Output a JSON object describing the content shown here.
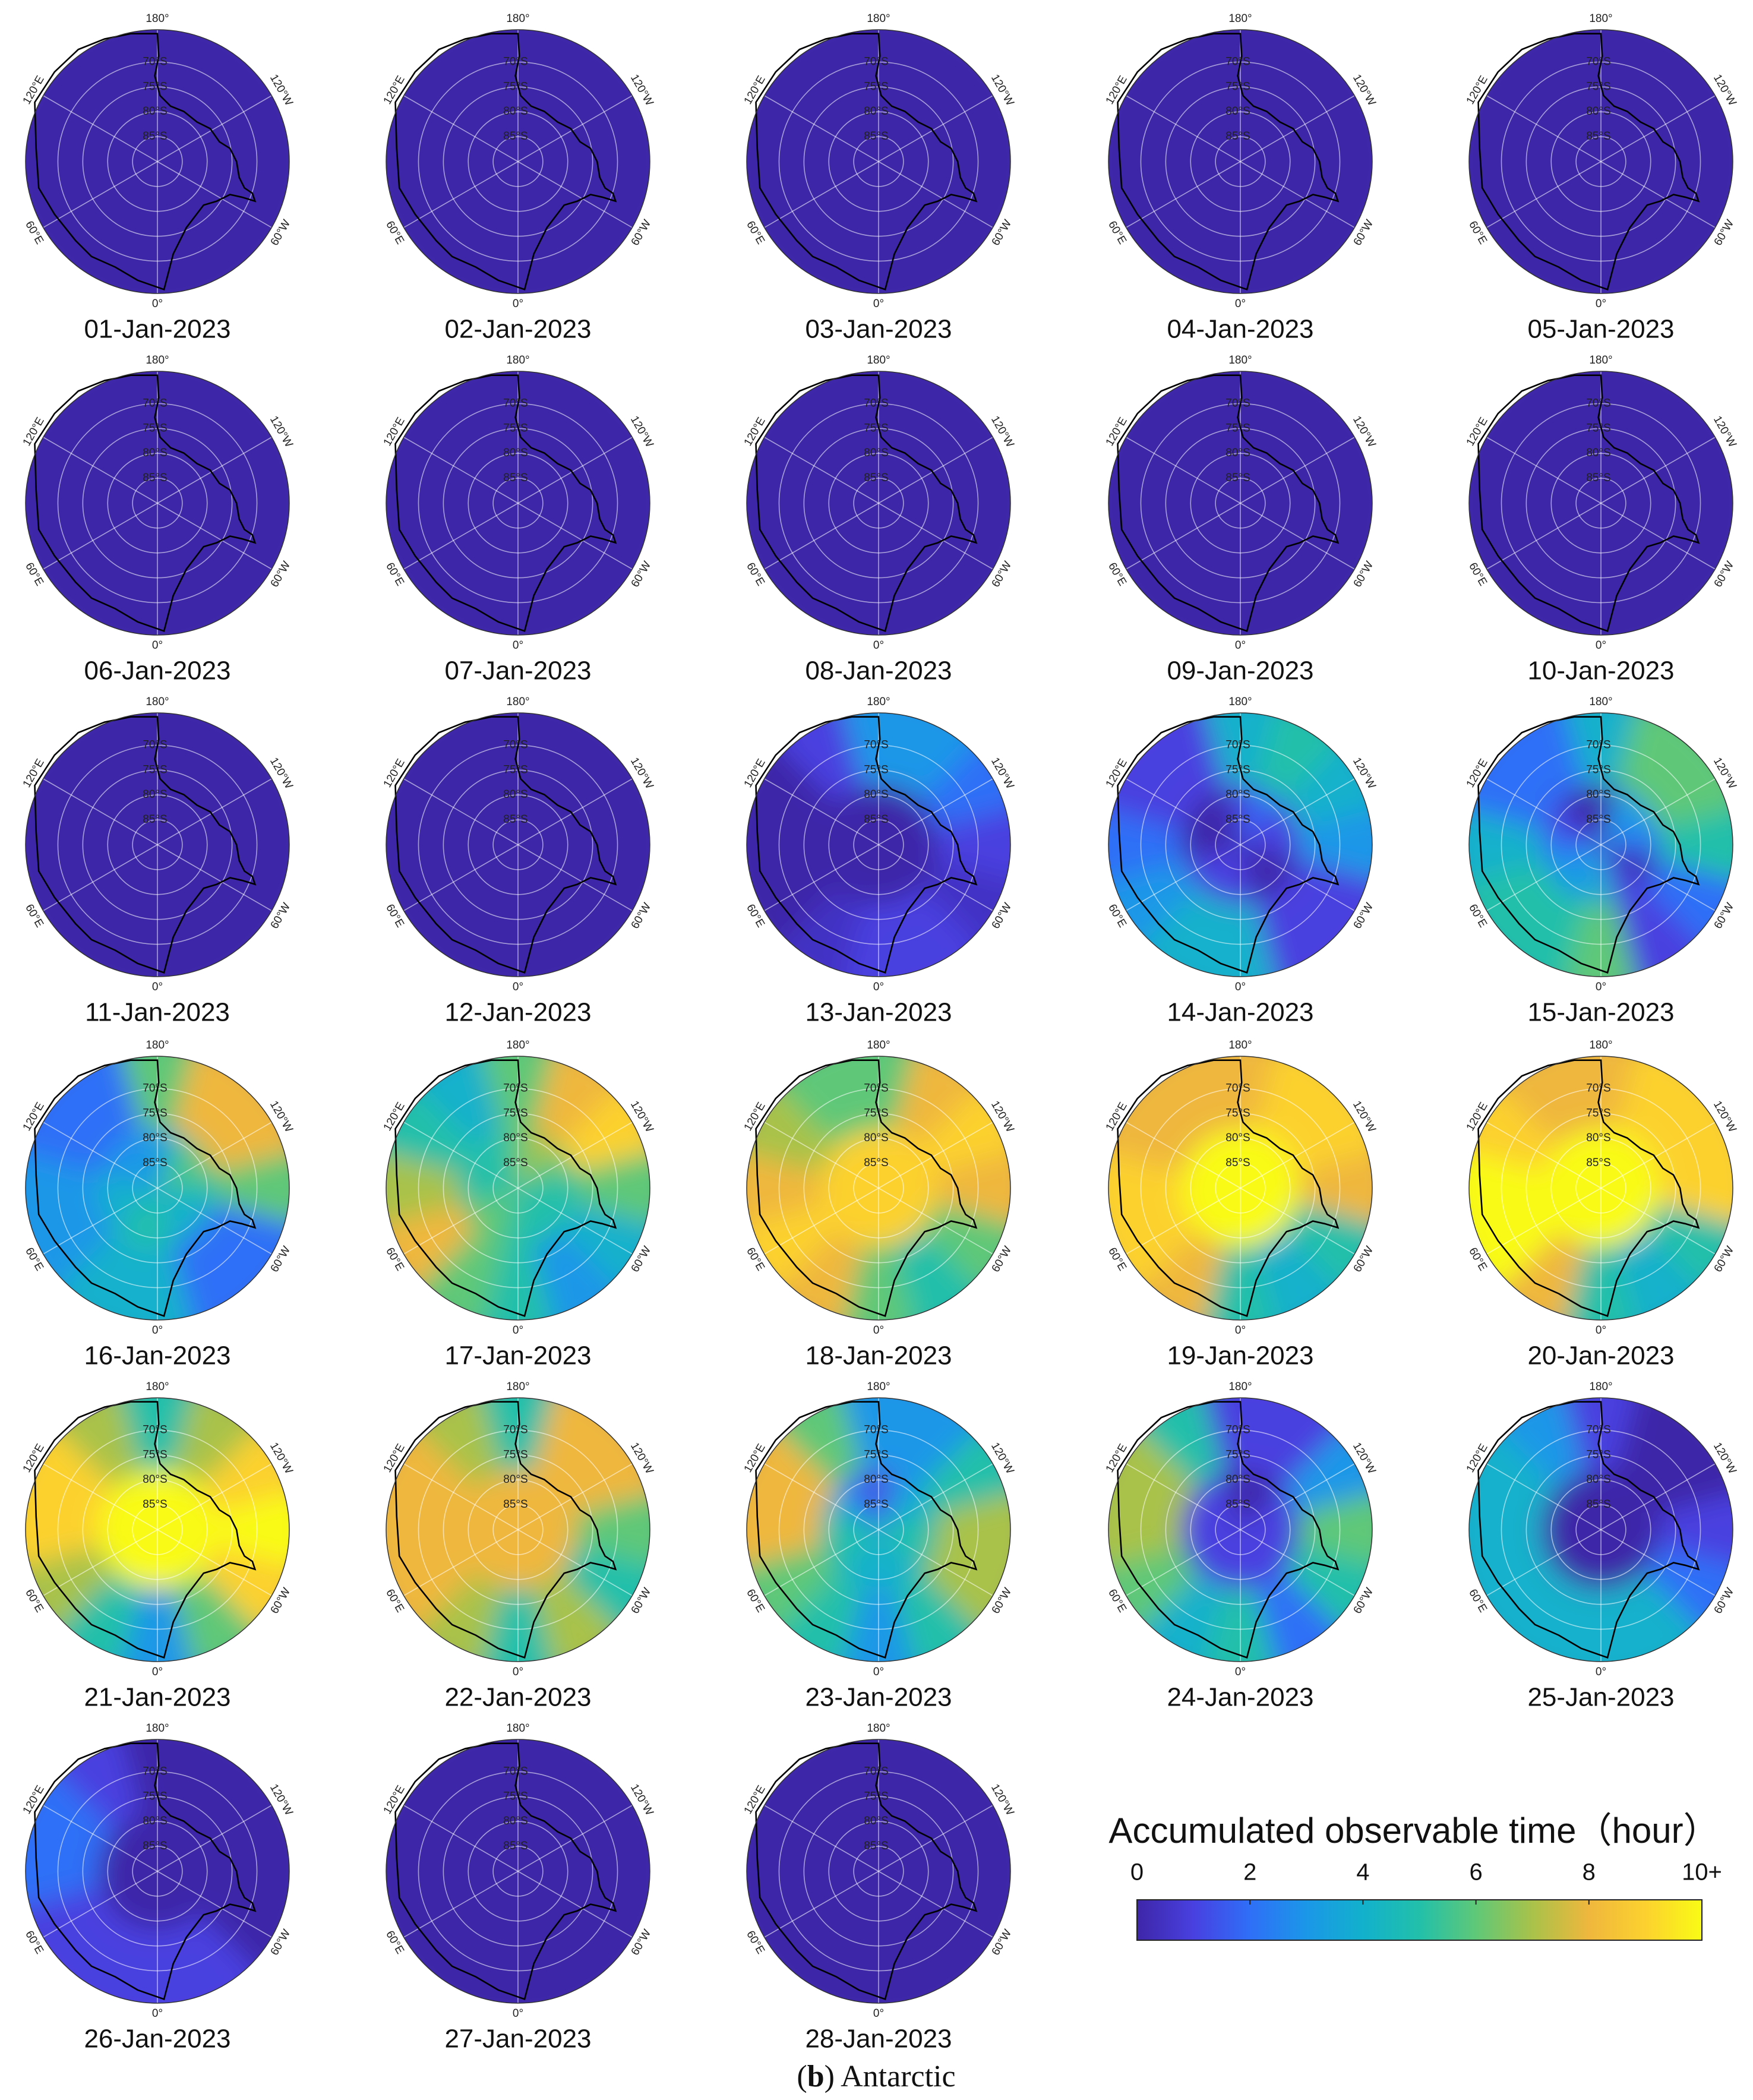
{
  "chart_data": {
    "type": "polar_heatmap_grid",
    "theta_ticks": [
      {
        "value": 0,
        "label": "0°"
      },
      {
        "value": 60,
        "label": "60°E"
      },
      {
        "value": 120,
        "label": "120°E"
      },
      {
        "value": 180,
        "label": "180°"
      },
      {
        "value": 240,
        "label": "120°W"
      },
      {
        "value": 300,
        "label": "60°W"
      }
    ],
    "r_ticks": [
      {
        "value": -85,
        "label": "85°S"
      },
      {
        "value": -80,
        "label": "80°S"
      },
      {
        "value": -75,
        "label": "75°S"
      },
      {
        "value": -70,
        "label": "70°S"
      }
    ],
    "rlim": [
      -90,
      -63.5
    ],
    "sector_centers": [
      0,
      30,
      60,
      90,
      120,
      150,
      180,
      210,
      240,
      270,
      300,
      330
    ],
    "ring_edges": [
      -90,
      -78,
      -63.5
    ],
    "panels": [
      {
        "title": "01-Jan-2023",
        "values": [
          [
            0,
            0,
            0,
            0,
            0,
            0,
            0,
            0,
            0,
            0,
            0,
            0
          ],
          [
            0,
            0,
            0,
            0,
            0,
            0,
            0,
            0,
            0,
            0,
            0,
            0
          ]
        ]
      },
      {
        "title": "02-Jan-2023",
        "values": [
          [
            0,
            0,
            0,
            0,
            0,
            0,
            0,
            0,
            0,
            0,
            0,
            0
          ],
          [
            0,
            0,
            0,
            0,
            0,
            0,
            0,
            0,
            0,
            0,
            0,
            0
          ]
        ]
      },
      {
        "title": "03-Jan-2023",
        "values": [
          [
            0,
            0,
            0,
            0,
            0,
            0,
            0,
            0,
            0,
            0,
            0,
            0
          ],
          [
            0,
            0,
            0,
            0,
            0,
            0,
            0,
            0,
            0,
            0,
            0,
            0
          ]
        ]
      },
      {
        "title": "04-Jan-2023",
        "values": [
          [
            0,
            0,
            0,
            0,
            0,
            0,
            0,
            0,
            0,
            0,
            0,
            0
          ],
          [
            0,
            0,
            0,
            0,
            0,
            0,
            0,
            0,
            0,
            0,
            0,
            0
          ]
        ]
      },
      {
        "title": "05-Jan-2023",
        "values": [
          [
            0,
            0,
            0,
            0,
            0,
            0,
            0,
            0,
            0,
            0,
            0,
            0
          ],
          [
            0,
            0,
            0,
            0,
            0,
            0,
            0,
            0,
            0,
            0,
            0,
            0
          ]
        ]
      },
      {
        "title": "06-Jan-2023",
        "values": [
          [
            0,
            0,
            0,
            0,
            0,
            0,
            0,
            0,
            0,
            0,
            0,
            0
          ],
          [
            0,
            0,
            0,
            0,
            0,
            0,
            0,
            0,
            0,
            0,
            0,
            0
          ]
        ]
      },
      {
        "title": "07-Jan-2023",
        "values": [
          [
            0,
            0,
            0,
            0,
            0,
            0,
            0,
            0,
            0,
            0,
            0,
            0
          ],
          [
            0,
            0,
            0,
            0,
            0,
            0,
            0,
            0,
            0,
            0,
            0,
            0
          ]
        ]
      },
      {
        "title": "08-Jan-2023",
        "values": [
          [
            0,
            0,
            0,
            0,
            0,
            0,
            0,
            0,
            0,
            0,
            0,
            0
          ],
          [
            0,
            0,
            0,
            0,
            0,
            0,
            0,
            0,
            0,
            0,
            0,
            0
          ]
        ]
      },
      {
        "title": "09-Jan-2023",
        "values": [
          [
            0,
            0,
            0,
            0,
            0,
            0,
            0,
            0,
            0,
            0,
            0,
            0
          ],
          [
            0,
            0,
            0,
            0,
            0,
            0,
            0,
            0,
            0,
            0,
            0,
            0
          ]
        ]
      },
      {
        "title": "10-Jan-2023",
        "values": [
          [
            0,
            0,
            0,
            0,
            0,
            0,
            0,
            0,
            0,
            0,
            0,
            0
          ],
          [
            0,
            0,
            0,
            0,
            0,
            0,
            0,
            0,
            0,
            0,
            0,
            0
          ]
        ]
      },
      {
        "title": "11-Jan-2023",
        "values": [
          [
            0,
            0,
            0,
            0,
            0,
            0,
            0,
            0,
            0,
            0,
            0,
            0
          ],
          [
            0,
            0,
            0,
            0,
            0,
            0,
            0,
            0,
            0,
            0,
            0,
            0
          ]
        ]
      },
      {
        "title": "12-Jan-2023",
        "values": [
          [
            0,
            0,
            0,
            0,
            0,
            0,
            0,
            0,
            0,
            0,
            0,
            0
          ],
          [
            0,
            0,
            0,
            0,
            0,
            0,
            0,
            0,
            0,
            0,
            0,
            0
          ]
        ]
      },
      {
        "title": "13-Jan-2023",
        "values": [
          [
            0,
            0,
            0,
            0,
            0,
            0,
            0,
            0,
            0,
            0,
            0,
            0
          ],
          [
            1,
            0.5,
            0,
            0,
            0,
            1,
            3,
            3,
            2,
            1,
            0.5,
            1
          ]
        ]
      },
      {
        "title": "14-Jan-2023",
        "values": [
          [
            1,
            1,
            1,
            0,
            0,
            0,
            1,
            2,
            1,
            1,
            0,
            0
          ],
          [
            4,
            4,
            3,
            2,
            1,
            1,
            4,
            5,
            4,
            3,
            1,
            1
          ]
        ]
      },
      {
        "title": "15-Jan-2023",
        "values": [
          [
            4,
            3,
            3,
            2,
            1,
            0,
            0,
            3,
            3,
            2,
            0,
            1
          ],
          [
            6,
            5,
            5,
            4,
            2,
            2,
            4,
            6,
            6,
            5,
            2,
            1
          ]
        ]
      },
      {
        "title": "16-Jan-2023",
        "values": [
          [
            5,
            5,
            4,
            4,
            3,
            3,
            3,
            5,
            6,
            5,
            4,
            4
          ],
          [
            4,
            4,
            3,
            3,
            2,
            2,
            6,
            8,
            8,
            6,
            2,
            2
          ]
        ]
      },
      {
        "title": "17-Jan-2023",
        "values": [
          [
            5,
            6,
            6,
            5,
            5,
            5,
            6,
            7,
            6,
            5,
            5,
            5
          ],
          [
            5,
            6,
            8,
            7,
            5,
            4,
            6,
            8,
            9,
            6,
            4,
            3
          ]
        ]
      },
      {
        "title": "18-Jan-2023",
        "values": [
          [
            9,
            9,
            9,
            9,
            9,
            9,
            9,
            9,
            9,
            9,
            9,
            9
          ],
          [
            6,
            8,
            9,
            8,
            7,
            6,
            6,
            8,
            9,
            8,
            6,
            5
          ]
        ]
      },
      {
        "title": "19-Jan-2023",
        "values": [
          [
            10,
            10,
            10,
            10,
            10,
            10,
            10,
            10,
            10,
            10,
            10,
            10
          ],
          [
            5,
            8,
            9,
            9,
            8,
            8,
            8,
            9,
            9,
            8,
            5,
            4
          ]
        ]
      },
      {
        "title": "20-Jan-2023",
        "values": [
          [
            10,
            10,
            10,
            10,
            10,
            10,
            10,
            10,
            10,
            10,
            10,
            10
          ],
          [
            5,
            8,
            10,
            10,
            9,
            8,
            8,
            9,
            9,
            9,
            5,
            4
          ]
        ]
      },
      {
        "title": "21-Jan-2023",
        "values": [
          [
            10,
            10,
            10,
            10,
            10,
            10,
            10,
            10,
            10,
            10,
            10,
            10
          ],
          [
            3,
            5,
            7,
            9,
            9,
            7,
            5,
            7,
            9,
            10,
            9,
            6
          ]
        ]
      },
      {
        "title": "22-Jan-2023",
        "values": [
          [
            8,
            8,
            8,
            8,
            8,
            8,
            8,
            8,
            8,
            8,
            8,
            8
          ],
          [
            5,
            7,
            8,
            8,
            8,
            7,
            5,
            8,
            8,
            6,
            5,
            7
          ]
        ]
      },
      {
        "title": "23-Jan-2023",
        "values": [
          [
            4,
            4,
            5,
            5,
            4,
            2,
            1,
            3,
            4,
            5,
            5,
            4
          ],
          [
            3,
            5,
            6,
            8,
            8,
            6,
            3,
            3,
            5,
            7,
            7,
            5
          ]
        ]
      },
      {
        "title": "24-Jan-2023",
        "values": [
          [
            1,
            1,
            1,
            1,
            1,
            1,
            0,
            0,
            1,
            1,
            1,
            1
          ],
          [
            5,
            4,
            6,
            7,
            7,
            5,
            1,
            1,
            3,
            6,
            5,
            2
          ]
        ]
      },
      {
        "title": "25-Jan-2023",
        "values": [
          [
            0,
            0,
            0,
            0,
            0,
            0,
            0,
            0,
            0,
            0,
            0,
            0
          ],
          [
            4,
            4,
            4,
            4,
            4,
            3,
            1,
            0,
            0,
            1,
            2,
            4
          ]
        ]
      },
      {
        "title": "26-Jan-2023",
        "values": [
          [
            0,
            0,
            0,
            0,
            0,
            0,
            0,
            0,
            0,
            0,
            0,
            0
          ],
          [
            1,
            1,
            1,
            2,
            2,
            1,
            0,
            0,
            0,
            0,
            0,
            1
          ]
        ]
      },
      {
        "title": "27-Jan-2023",
        "values": [
          [
            0,
            0,
            0,
            0,
            0,
            0,
            0,
            0,
            0,
            0,
            0,
            0
          ],
          [
            0,
            0,
            0,
            0,
            0,
            0,
            0,
            0,
            0,
            0,
            0,
            0
          ]
        ]
      },
      {
        "title": "28-Jan-2023",
        "values": [
          [
            0,
            0,
            0,
            0,
            0,
            0,
            0,
            0,
            0,
            0,
            0,
            0
          ],
          [
            0,
            0,
            0,
            0,
            0,
            0,
            0,
            0,
            0,
            0,
            0,
            0
          ]
        ]
      }
    ],
    "colorbar": {
      "title": "Accumulated observable time（hour）",
      "clim": [
        0,
        10
      ],
      "ticks": [
        0,
        2,
        4,
        6,
        8,
        {
          "value": 10,
          "label": "10+"
        }
      ],
      "colormap": [
        "#3e26a8",
        "#4840e0",
        "#2f6ff7",
        "#1b97e8",
        "#12b1cc",
        "#22c0aa",
        "#5fc878",
        "#a9c24a",
        "#efb73d",
        "#fcd12f",
        "#f9fb15"
      ]
    },
    "caption": [
      "(",
      "b",
      ") Antarctic"
    ]
  }
}
